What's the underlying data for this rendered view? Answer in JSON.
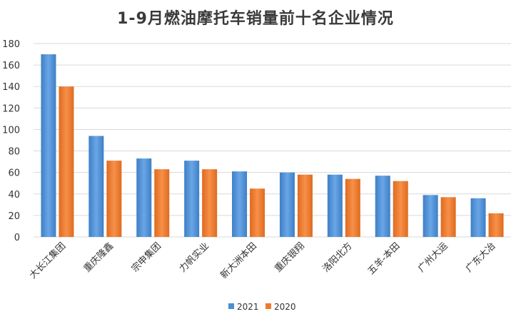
{
  "chart_data": {
    "type": "bar",
    "title": "1-9月燃油摩托车销量前十名企业情况",
    "xlabel": "",
    "ylabel": "",
    "ylim": [
      0,
      180
    ],
    "yticks": [
      0,
      20,
      40,
      60,
      80,
      100,
      120,
      140,
      160,
      180
    ],
    "grid": true,
    "legend_position": "bottom",
    "categories": [
      "大长江集团",
      "重庆隆鑫",
      "宗申集团",
      "力帆实业",
      "新大洲本田",
      "重庆银翔",
      "洛阳北方",
      "五羊-本田",
      "广州大运",
      "广东大冶"
    ],
    "series": [
      {
        "name": "2021",
        "color": "#4a8fd6",
        "values": [
          170,
          94,
          73,
          71,
          61,
          60,
          58,
          57,
          39,
          36
        ]
      },
      {
        "name": "2020",
        "color": "#ee7b2e",
        "values": [
          140,
          71,
          63,
          63,
          45,
          58,
          54,
          52,
          37,
          22
        ]
      }
    ]
  }
}
